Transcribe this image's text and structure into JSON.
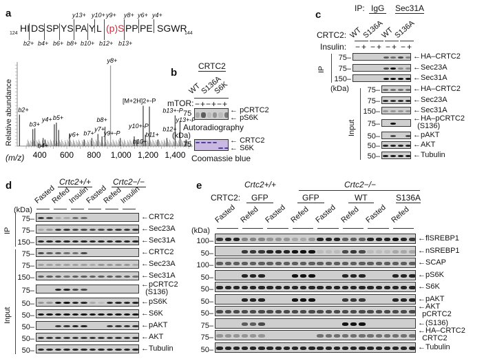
{
  "panel_labels": {
    "a": "a",
    "b": "b",
    "c": "c",
    "d": "d",
    "e": "e"
  },
  "panel_a": {
    "seq_start": "124",
    "seq_end": "144",
    "segments": [
      "HI",
      "DS",
      "SP",
      "YS",
      "PA",
      "Y",
      "L",
      "(p)S",
      "PP",
      "PE",
      "SGWR"
    ],
    "y_ions": [
      "y13+",
      "y10+",
      "y9+",
      "y8+",
      "y6+",
      "y4+"
    ],
    "b_ions": [
      "b2+",
      "b4+",
      "b6+",
      "b8+",
      "b10+",
      "b12+",
      "b13+"
    ],
    "chart_data": {
      "type": "bar",
      "title": "",
      "xlabel": "(m/z)",
      "ylabel": "Relative abundance",
      "xlim": [
        300,
        1520
      ],
      "ylim": [
        0,
        100
      ],
      "xticks": [
        "400",
        "600",
        "800",
        "1,000",
        "1,200",
        "1,400"
      ],
      "xtick_values": [
        400,
        600,
        800,
        1000,
        1200,
        1400
      ],
      "peaks": [
        {
          "mz": 251,
          "intensity": 39,
          "label": "b2+"
        },
        {
          "mz": 349,
          "intensity": 21,
          "label": "b3+"
        },
        {
          "mz": 364,
          "intensity": 22,
          "label": ""
        },
        {
          "mz": 425,
          "intensity": 10,
          "label": "b4+"
        },
        {
          "mz": 440,
          "intensity": 8,
          "label": ""
        },
        {
          "mz": 508,
          "intensity": 27,
          "label": "y4+"
        },
        {
          "mz": 523,
          "intensity": 29,
          "label": "b5+"
        },
        {
          "mz": 540,
          "intensity": 20,
          "label": ""
        },
        {
          "mz": 620,
          "intensity": 15,
          "label": ""
        },
        {
          "mz": 728,
          "intensity": 8,
          "label": "y6+"
        },
        {
          "mz": 785,
          "intensity": 10,
          "label": "b7+"
        },
        {
          "mz": 830,
          "intensity": 15,
          "label": "y7+"
        },
        {
          "mz": 860,
          "intensity": 12,
          "label": ""
        },
        {
          "mz": 882,
          "intensity": 24,
          "label": "b8+"
        },
        {
          "mz": 923,
          "intensity": 100,
          "label": "y8+"
        },
        {
          "mz": 995,
          "intensity": 10,
          "label": "y9+-P"
        },
        {
          "mz": 1098,
          "intensity": 12,
          "label": "y10+-P"
        },
        {
          "mz": 1118,
          "intensity": 8,
          "label": "b10+"
        },
        {
          "mz": 1164,
          "intensity": 50,
          "label": "[M+2H]2+-P"
        },
        {
          "mz": 1180,
          "intensity": 14,
          "label": ""
        },
        {
          "mz": 1210,
          "intensity": 49,
          "label": ""
        },
        {
          "mz": 1272,
          "intensity": 8,
          "label": "b11+"
        },
        {
          "mz": 1339,
          "intensity": 10,
          "label": "b12+"
        },
        {
          "mz": 1400,
          "intensity": 38,
          "label": "b13+-P"
        },
        {
          "mz": 1436,
          "intensity": 30,
          "label": "y13+-P"
        },
        {
          "mz": 1480,
          "intensity": 8,
          "label": ""
        }
      ]
    }
  },
  "panel_b": {
    "header": "CRTC2",
    "lanes": [
      "WT",
      "S136A",
      "S6K"
    ],
    "treatment_label": "mTOR:",
    "treatment": [
      "−",
      "+",
      "−",
      "+",
      "−",
      "+"
    ],
    "kda_unit": "(kDa)",
    "autorad": {
      "kda": "75",
      "labels": [
        "pCRTC2",
        "pS6K"
      ],
      "caption": "Autoradiography",
      "lanes": [
        0.2,
        0.6,
        0.1,
        0.3,
        0.1,
        0.45
      ]
    },
    "coomassie": {
      "kda": "75",
      "labels": [
        "CRTC2",
        "S6K"
      ],
      "caption": "Coomassie blue",
      "crtc2": [
        1,
        1,
        1,
        1,
        0,
        0
      ],
      "s6k": [
        0,
        0,
        0,
        0,
        1,
        1
      ],
      "color": "#c8b8e2"
    }
  },
  "panel_c": {
    "ip_label": "IP:",
    "ip_groups": [
      "IgG",
      "Sec31A"
    ],
    "crtc2_label": "CRTC2:",
    "lanes": [
      "WT",
      "S136A",
      "WT",
      "S136A"
    ],
    "insulin_label": "Insulin:",
    "insulin": [
      "−",
      "+",
      "−",
      "+",
      "−",
      "+",
      "−",
      "+"
    ],
    "kda_unit": "(kDa)",
    "section_ip": "IP",
    "section_input": "Input",
    "blots": [
      {
        "label": "HA–CRTC2",
        "kda": "75",
        "lanes": [
          0,
          0,
          0,
          0,
          0.6,
          0.5,
          0.7,
          0.4
        ]
      },
      {
        "label": "Sec23A",
        "kda": "75",
        "lanes": [
          0,
          0,
          0,
          0,
          0.7,
          1,
          0.35,
          0.35
        ]
      },
      {
        "label": "Sec31A",
        "kda": "150",
        "lanes": [
          0,
          0,
          0,
          0,
          1,
          1,
          1,
          1
        ]
      },
      {
        "label": "HA–CRTC2",
        "kda": "75",
        "lanes": [
          0.5,
          0.5,
          0.5,
          0.5
        ]
      },
      {
        "label": "Sec23A",
        "kda": "75",
        "lanes": [
          0.85,
          0.85,
          0.85,
          0.85
        ]
      },
      {
        "label": "Sec31A",
        "kda": "150",
        "lanes": [
          0.3,
          0.3,
          0.3,
          0.3
        ]
      },
      {
        "label": "HA–pCRTC2\n(S136)",
        "kda": "75",
        "lanes": [
          0,
          1,
          0,
          0
        ]
      },
      {
        "label": "pAKT",
        "kda": "50",
        "lanes": [
          0,
          0.7,
          0,
          0.7
        ]
      },
      {
        "label": "AKT",
        "kda": "50",
        "lanes": [
          0.9,
          0.9,
          0.9,
          0.9
        ]
      },
      {
        "label": "Tubulin",
        "kda": "50",
        "lanes": [
          0.95,
          0.95,
          0.95,
          0.95
        ]
      }
    ]
  },
  "panel_d": {
    "groups": [
      "Crtc2+/+",
      "Crtc2−/−"
    ],
    "lanes": [
      "Fasted",
      "Refed",
      "Insulin",
      "Fasted",
      "Refed",
      "Insulin"
    ],
    "kda_unit": "(kDa)",
    "section_ip": "IP",
    "section_input": "Input",
    "blots": [
      {
        "label": "CRTC2",
        "kda": "75",
        "lanes": [
          0.8,
          0.7,
          0.2,
          0.2,
          0.5,
          0.5,
          0,
          0,
          0,
          0,
          0,
          0
        ]
      },
      {
        "label": "Sec23A",
        "kda": "75",
        "lanes": [
          0.2,
          0.3,
          0.8,
          0.8,
          0.7,
          0.7,
          0.7,
          0.7,
          0.8,
          0.8,
          0.8,
          0.8
        ]
      },
      {
        "label": "Sec31A",
        "kda": "150",
        "lanes": [
          0.9,
          0.9,
          0.9,
          0.9,
          0.9,
          0.9,
          0.9,
          0.9,
          0.9,
          0.9,
          0.9,
          0.9
        ]
      },
      {
        "label": "CRTC2",
        "kda": "75",
        "lanes": [
          0.7,
          0.6,
          0.6,
          0.5,
          0.5,
          0.7,
          0,
          0,
          0,
          0,
          0,
          0
        ]
      },
      {
        "label": "Sec23A",
        "kda": "75",
        "lanes": [
          0.25,
          0.25,
          0.25,
          0.25,
          0.25,
          0.25,
          0.2,
          0.3,
          0.3,
          0.3,
          0.3,
          0.2
        ]
      },
      {
        "label": "Sec31A",
        "kda": "150",
        "lanes": [
          0.6,
          0.6,
          0.6,
          0.5,
          0.6,
          0.6,
          0.6,
          0.6,
          0.6,
          0.6,
          0.6,
          0.5
        ]
      },
      {
        "label": "pCRTC2\n(S136)",
        "kda": "75",
        "lanes": [
          0,
          0,
          0.9,
          0.9,
          0.7,
          0.7,
          0,
          0,
          0,
          0,
          0,
          0
        ]
      },
      {
        "label": "pS6K",
        "kda": "50",
        "lanes": [
          0.3,
          0.3,
          1,
          1,
          0.9,
          0.9,
          0.2,
          0.1,
          0.9,
          0.9,
          0.9,
          0.9
        ]
      },
      {
        "label": "S6K",
        "kda": "50",
        "lanes": [
          1,
          1,
          1,
          1,
          1,
          1,
          1,
          1,
          1,
          1,
          1,
          1
        ]
      },
      {
        "label": "pAKT",
        "kda": "50",
        "lanes": [
          0,
          0,
          0.8,
          0.8,
          0.9,
          0.9,
          0,
          0,
          0.8,
          0.8,
          0.8,
          0.8
        ]
      },
      {
        "label": "AKT",
        "kda": "50",
        "lanes": [
          0.8,
          0.8,
          0.8,
          0.8,
          0.8,
          0.8,
          0.8,
          0.8,
          0.8,
          0.8,
          0.8,
          0.8
        ]
      },
      {
        "label": "Tubulin",
        "kda": "50",
        "lanes": [
          0.9,
          0.9,
          0.9,
          0.9,
          0.9,
          0.9,
          0.9,
          0.9,
          0.9,
          0.9,
          0.9,
          0.9
        ]
      }
    ]
  },
  "panel_e": {
    "groups": [
      "Crtc2+/+",
      "Crtc2−/−"
    ],
    "crtc2_label": "CRTC2:",
    "constructs": [
      "GFP",
      "GFP",
      "WT",
      "S136A"
    ],
    "lanes": [
      "Fasted",
      "Refed",
      "Fasted",
      "Refed",
      "Fasted",
      "Refed",
      "Fasted",
      "Refed"
    ],
    "kda_unit": "(kDa)",
    "blots": [
      {
        "label": "flSREBP1",
        "kda": "100",
        "lanes": [
          0.8,
          0.9,
          0.9,
          0.4,
          0.4,
          0.4,
          0.3,
          0.3,
          0.3,
          0.2,
          0.2,
          0.3,
          0.9,
          0.9,
          0.9,
          0.6,
          0.6,
          0.6,
          0.9,
          0.9,
          0.9,
          1,
          0.9,
          0.8
        ]
      },
      {
        "label": "nSREBP1",
        "kda": "50",
        "lanes": [
          0,
          0,
          0,
          0.8,
          0.8,
          0.8,
          0.9,
          0.9,
          0.9,
          1,
          1,
          1,
          0.1,
          0.1,
          0.1,
          0.7,
          0.8,
          0.7,
          0.1,
          0.1,
          0.1,
          0.2,
          0.2,
          0.2
        ]
      },
      {
        "label": "SCAP",
        "kda": "100",
        "lanes": [
          0.6,
          0.6,
          0.6,
          0.6,
          0.6,
          0.6,
          0.6,
          0.6,
          0.6,
          0.6,
          0.6,
          0.6,
          0.6,
          0.6,
          0.6,
          0.6,
          0.6,
          0.6,
          0.6,
          0.6,
          0.6,
          0.6,
          0.6,
          0.6
        ]
      },
      {
        "label": "pS6K",
        "kda": "50",
        "lanes": [
          0,
          0,
          0,
          0.9,
          0.9,
          0.9,
          0,
          0,
          0,
          1,
          1,
          1,
          0,
          0,
          0,
          0.9,
          0.9,
          0.9,
          0,
          0,
          0,
          0.9,
          0.9,
          0.9
        ]
      },
      {
        "label": "S6K",
        "kda": "50",
        "lanes": [
          0.9,
          0.9,
          0.9,
          0.9,
          0.9,
          0.9,
          0.9,
          0.9,
          0.9,
          0.9,
          0.9,
          0.9,
          0.9,
          0.9,
          0.9,
          0.9,
          0.9,
          0.9,
          0.9,
          0.9,
          0.9,
          0.9,
          0.9,
          0.9
        ]
      },
      {
        "label": "pAKT",
        "kda": "50",
        "lanes": [
          0,
          0,
          0,
          0.9,
          0.9,
          0.9,
          0,
          0,
          0,
          1,
          1,
          1,
          0,
          0,
          0,
          0.8,
          0.8,
          0.8,
          0,
          0,
          0,
          0.9,
          0.9,
          0.9
        ]
      },
      {
        "label": "AKT\npCRTC2",
        "kda": "50",
        "lanes": [
          0.7,
          0.7,
          0.7,
          0.7,
          0.7,
          0.7,
          0.7,
          0.7,
          0.7,
          0.7,
          0.7,
          0.7,
          0.7,
          0.7,
          0.7,
          0.7,
          0.7,
          0.7,
          0.7,
          0.7,
          0.7,
          0.7,
          0.7,
          0.7
        ]
      },
      {
        "label": "(S136)",
        "kda": "75",
        "lanes": [
          0,
          0,
          0,
          0.6,
          0.6,
          0.7,
          0,
          0,
          0,
          0,
          0,
          0,
          0,
          0,
          0,
          1,
          1,
          1,
          0,
          0,
          0,
          0,
          0,
          0
        ]
      },
      {
        "label": "HA–CRTC2\nCRTC2",
        "kda": "75",
        "lanes": [
          0.3,
          0.3,
          0.3,
          0.3,
          0.3,
          0.3,
          0,
          0,
          0,
          0,
          0,
          0,
          0.5,
          0.5,
          0.5,
          0.5,
          0.5,
          0.5,
          0.5,
          0.5,
          0.5,
          0.5,
          0.5,
          0.5
        ]
      },
      {
        "label": "Tubulin",
        "kda": "50",
        "lanes": [
          0.9,
          0.9,
          0.9,
          0.9,
          0.9,
          0.9,
          0.9,
          0.9,
          0.9,
          0.9,
          0.9,
          0.9,
          0.9,
          0.9,
          0.9,
          0.9,
          0.9,
          0.9,
          0.9,
          0.9,
          0.9,
          0.9,
          0.9,
          0.9
        ]
      }
    ]
  }
}
